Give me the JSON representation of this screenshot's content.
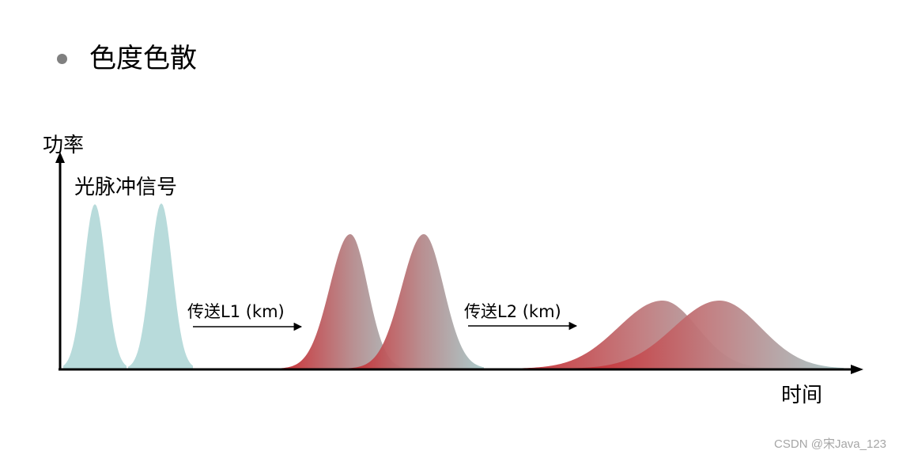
{
  "slide": {
    "title": "色度色散",
    "bullet_color": "#808080"
  },
  "axes": {
    "y_label": "功率",
    "x_label": "时间"
  },
  "labels": {
    "signal": "光脉冲信号",
    "transfer_1": "传送L1 (km)",
    "transfer_2": "传送L2 (km)"
  },
  "colors": {
    "pulse_original": "#b4d9d9",
    "pulse_shifted": "#c8262c",
    "pulse_tail": "#a7c9c9",
    "axis": "#000000"
  },
  "watermark": "CSDN @宋Java_123"
}
